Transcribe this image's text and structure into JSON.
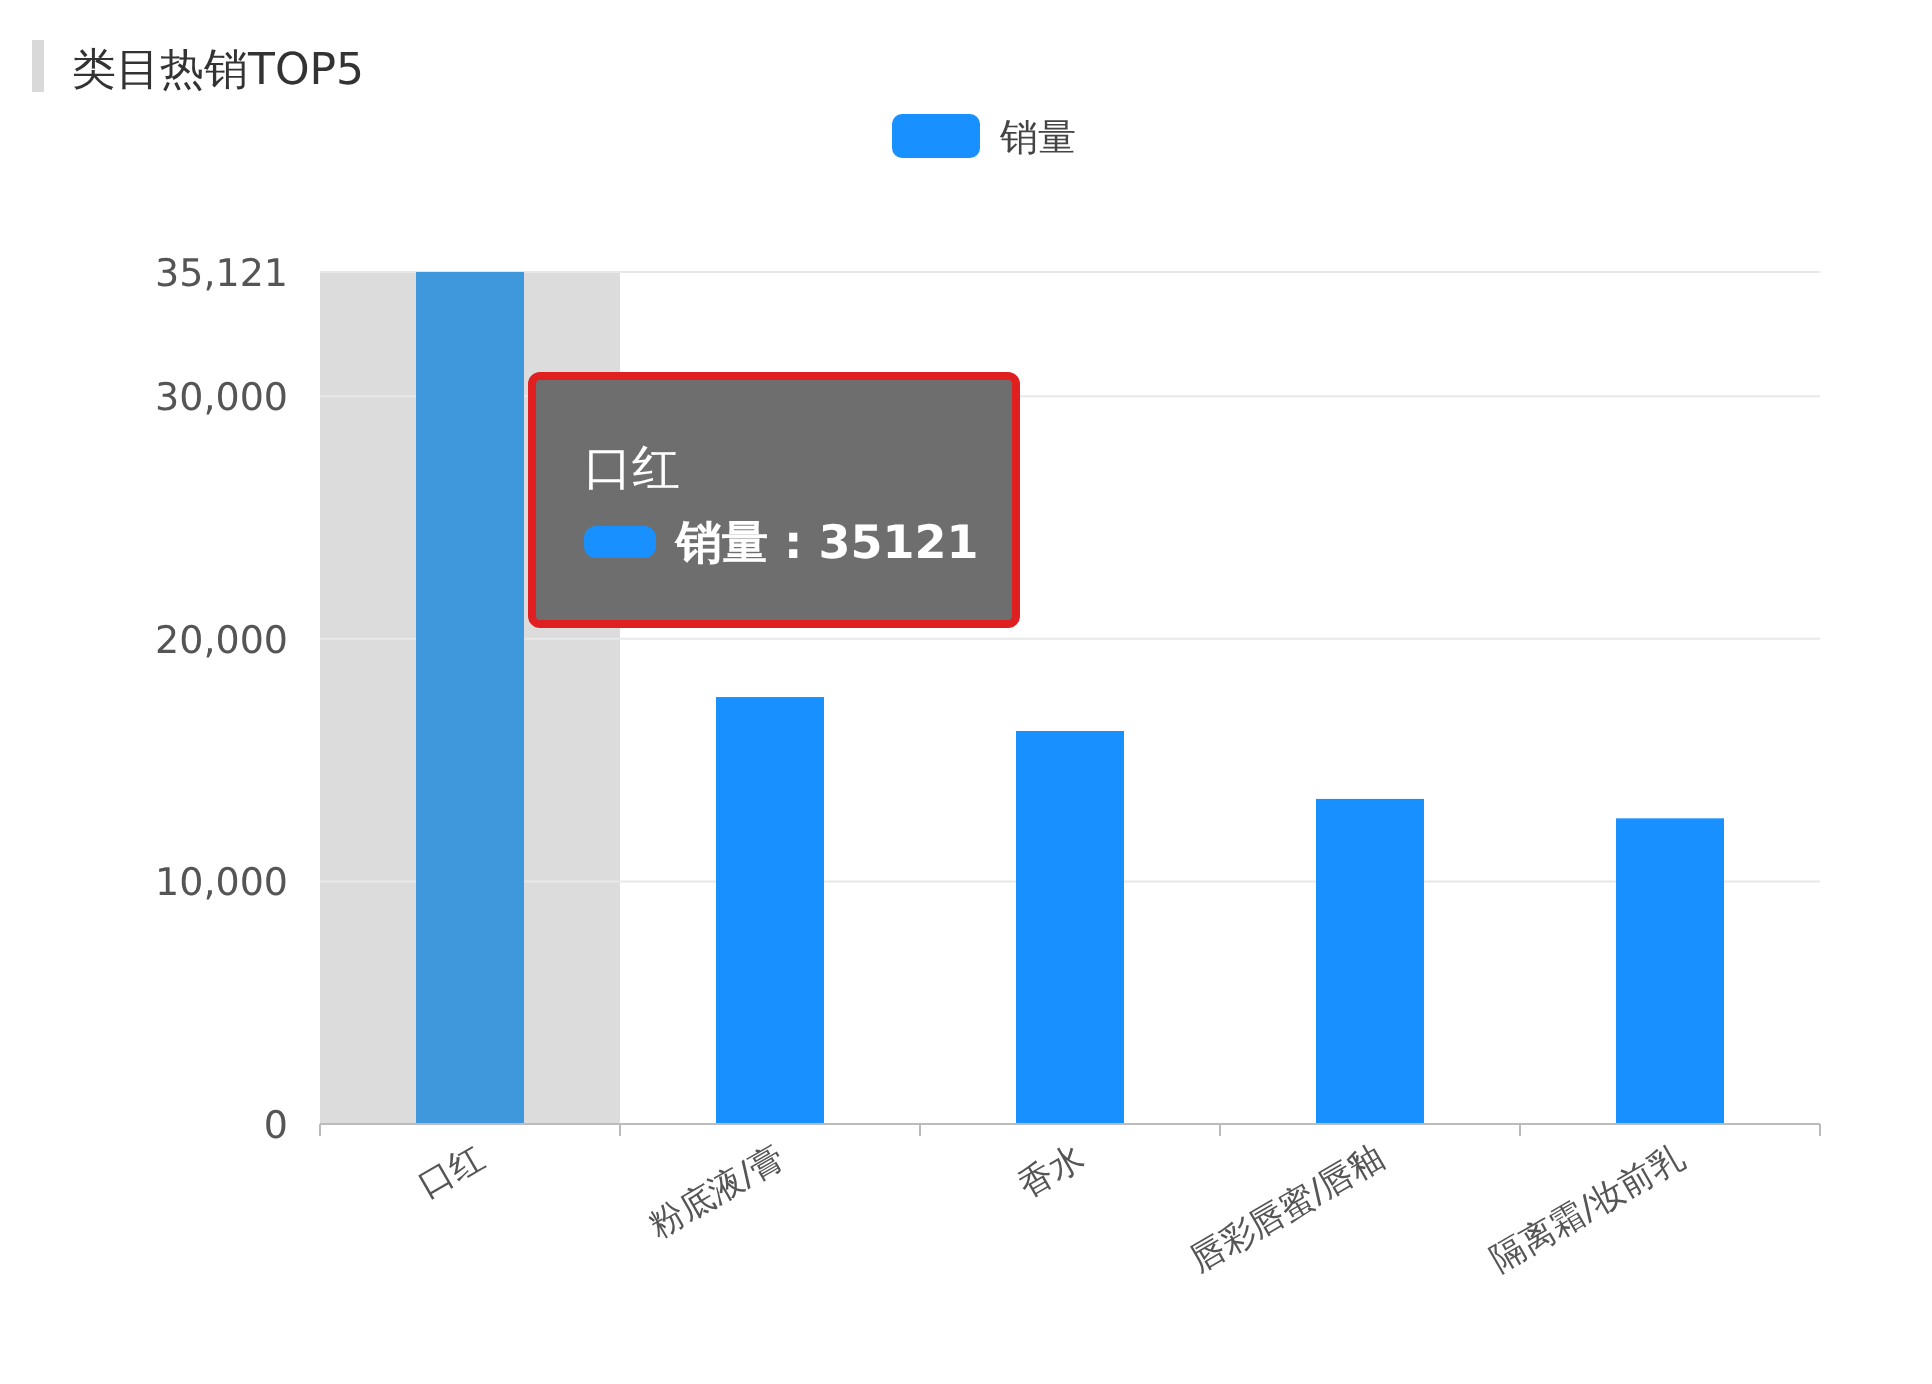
{
  "chart_data": {
    "type": "bar",
    "title": "类目热销TOP5",
    "categories": [
      "口红",
      "粉底液/膏",
      "香水",
      "唇彩唇蜜/唇釉",
      "隔离霜/妆前乳"
    ],
    "series": [
      {
        "name": "销量",
        "color": "#1890ff",
        "colors": [
          "#3f98db",
          "#1890ff",
          "#1890ff",
          "#1890ff",
          "#1890ff"
        ],
        "values": [
          35121,
          17600,
          16200,
          13400,
          12600
        ]
      }
    ],
    "ylim": [
      0,
      35121
    ],
    "yticks": [
      {
        "value": 0,
        "label": "0"
      },
      {
        "value": 10000,
        "label": "10,000"
      },
      {
        "value": 20000,
        "label": "20,000"
      },
      {
        "value": 30000,
        "label": "30,000"
      },
      {
        "value": 35121,
        "label": "35,121"
      }
    ],
    "grid": "y",
    "legend": "top",
    "bands": [
      {
        "axis": "x",
        "from": "口红",
        "to": "口红",
        "color": "#dcdcdc"
      }
    ],
    "annotations": [
      "口红",
      "销量 : 35121"
    ]
  }
}
